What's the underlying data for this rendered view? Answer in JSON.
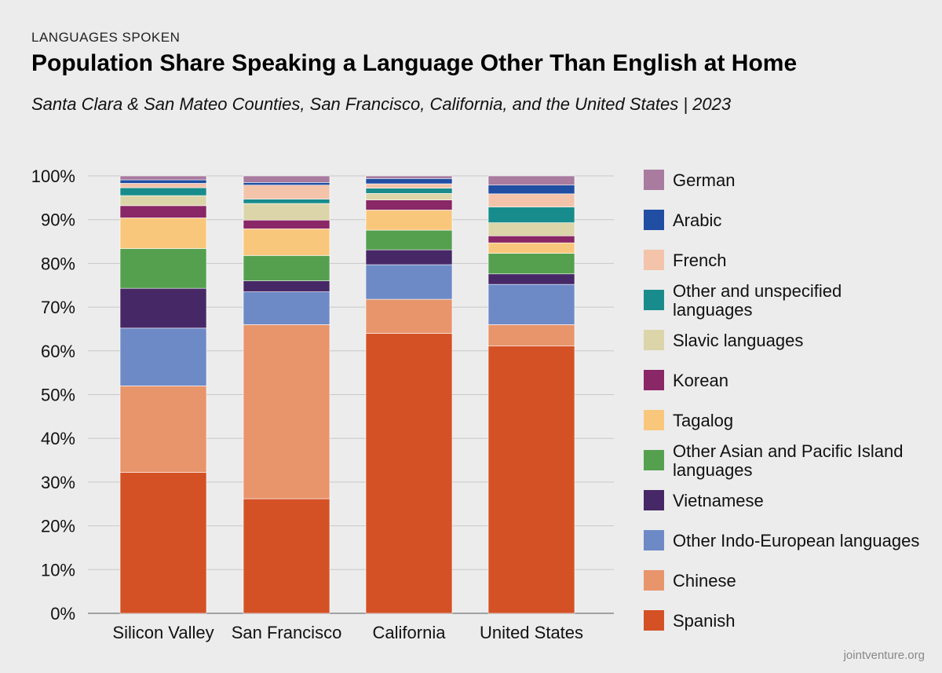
{
  "header": {
    "kicker": "LANGUAGES SPOKEN",
    "title": "Population Share Speaking a Language Other Than English at Home",
    "subtitle": "Santa Clara & San Mateo Counties, San Francisco, California, and the United States | 2023"
  },
  "credit": "jointventure.org",
  "chart_data": {
    "type": "bar",
    "stacked": true,
    "categories": [
      "Silicon Valley",
      "San Francisco",
      "California",
      "United States"
    ],
    "ylim": [
      0,
      100
    ],
    "yticks": [
      "0%",
      "10%",
      "20%",
      "30%",
      "40%",
      "50%",
      "60%",
      "70%",
      "80%",
      "90%",
      "100%"
    ],
    "grid": true,
    "legend_position": "right",
    "series": [
      {
        "name": "Spanish",
        "color": "#d45126",
        "values": [
          32.2,
          26.2,
          64.0,
          61.1
        ]
      },
      {
        "name": "Chinese",
        "color": "#e8956c",
        "values": [
          19.8,
          39.8,
          7.8,
          4.9
        ]
      },
      {
        "name": "Other Indo-European languages",
        "color": "#6d8ac7",
        "values": [
          13.2,
          7.5,
          7.9,
          9.2
        ]
      },
      {
        "name": "Vietnamese",
        "color": "#472866",
        "values": [
          9.1,
          2.5,
          3.4,
          2.4
        ]
      },
      {
        "name": "Other Asian and Pacific Island languages",
        "color": "#55a04f",
        "values": [
          9.1,
          5.8,
          4.5,
          4.7
        ]
      },
      {
        "name": "Tagalog",
        "color": "#f9c77c",
        "values": [
          7.0,
          6.1,
          4.6,
          2.4
        ]
      },
      {
        "name": "Korean",
        "color": "#8a2766",
        "values": [
          2.8,
          2.0,
          2.3,
          1.6
        ]
      },
      {
        "name": "Slavic languages",
        "color": "#dcd5a9",
        "values": [
          2.3,
          3.8,
          1.5,
          3.0
        ]
      },
      {
        "name": "Other and unspecified languages",
        "color": "#188c8c",
        "values": [
          1.8,
          1.0,
          1.2,
          3.6
        ]
      },
      {
        "name": "French",
        "color": "#f3c3aa",
        "values": [
          1.0,
          3.2,
          1.0,
          3.0
        ]
      },
      {
        "name": "Arabic",
        "color": "#1f4ea3",
        "values": [
          0.8,
          0.6,
          1.2,
          2.0
        ]
      },
      {
        "name": "German",
        "color": "#a97b9f",
        "values": [
          0.9,
          1.5,
          0.6,
          2.1
        ]
      }
    ]
  }
}
